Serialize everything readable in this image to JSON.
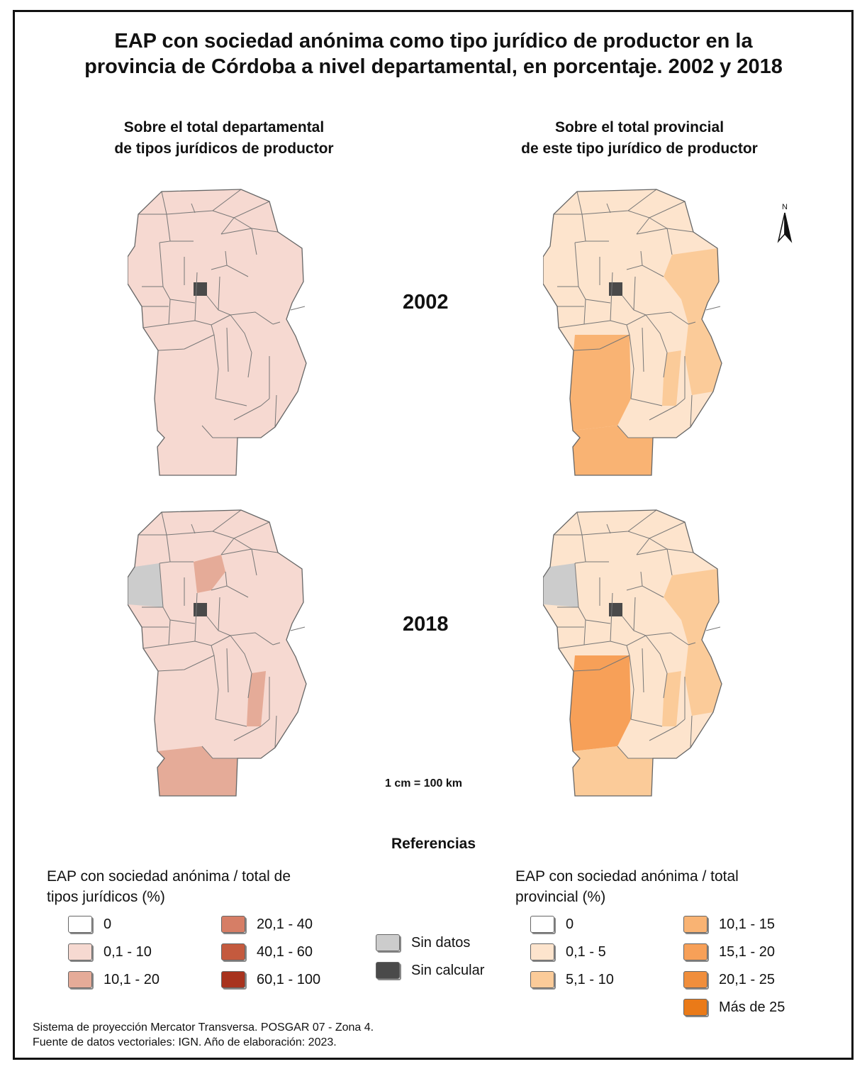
{
  "title": {
    "line1": "EAP con sociedad anónima como tipo jurídico de productor en la",
    "line2": "provincia de Córdoba a nivel departamental, en porcentaje. 2002 y 2018"
  },
  "columns": {
    "left": {
      "line1": "Sobre el total departamental",
      "line2": "de tipos jurídicos de productor"
    },
    "right": {
      "line1": "Sobre el total provincial",
      "line2": "de este tipo jurídico de productor"
    }
  },
  "years": [
    "2002",
    "2018"
  ],
  "scale": "1 cm = 100 km",
  "north": "N",
  "references_title": "Referencias",
  "legend_left": {
    "heading_line1": "EAP con sociedad anónima /  total de",
    "heading_line2": "tipos jurídicos (%)",
    "classes": [
      {
        "label": "0",
        "color": "#ffffff"
      },
      {
        "label": "0,1 - 10",
        "color": "#f6d9d1"
      },
      {
        "label": "10,1 - 20",
        "color": "#e5ab98"
      },
      {
        "label": "20,1 - 40",
        "color": "#d67e66"
      },
      {
        "label": "40,1 - 60",
        "color": "#c45a3e"
      },
      {
        "label": "60,1 - 100",
        "color": "#a8331e"
      }
    ]
  },
  "legend_mid": [
    {
      "label": "Sin datos",
      "color": "#cccccc"
    },
    {
      "label": "Sin calcular",
      "color": "#4a4a4a"
    }
  ],
  "legend_right": {
    "heading_line1": "EAP con sociedad anónima / total",
    "heading_line2": "provincial (%)",
    "classes": [
      {
        "label": "0",
        "color": "#ffffff"
      },
      {
        "label": "0,1 - 5",
        "color": "#fde4cd"
      },
      {
        "label": "5,1 - 10",
        "color": "#fbcb99"
      },
      {
        "label": "10,1 - 15",
        "color": "#f9b373"
      },
      {
        "label": "15,1 - 20",
        "color": "#f7a058"
      },
      {
        "label": "20,1 - 25",
        "color": "#f08e3c"
      },
      {
        "label": "Más de 25",
        "color": "#ea7a18"
      }
    ]
  },
  "footer": {
    "line1": "Sistema de proyección Mercator Transversa. POSGAR 07 - Zona 4.",
    "line2": "Fuente de datos vectoriales: IGN. Año de elaboración: 2023."
  },
  "maps": [
    {
      "name": "map-2002-departmental",
      "fills": {
        "base": "#f6d9d1",
        "west": "#f6d9d1",
        "capital": "#4a4a4a",
        "centerNorth": "#f6d9d1",
        "centralEast": "#f6d9d1",
        "southCenter": "#f6d9d1",
        "south": "#f6d9d1",
        "bottom": "#f6d9d1",
        "east": "#f6d9d1"
      }
    },
    {
      "name": "map-2002-provincial",
      "fills": {
        "base": "#fde4cd",
        "west": "#fde4cd",
        "capital": "#4a4a4a",
        "centerNorth": "#fde4cd",
        "centralEast": "#fbcb99",
        "southCenter": "#fbcb99",
        "south": "#f9b373",
        "bottom": "#f9b373",
        "east": "#fbcb99"
      }
    },
    {
      "name": "map-2018-departmental",
      "fills": {
        "base": "#f6d9d1",
        "west": "#cccccc",
        "capital": "#4a4a4a",
        "centerNorth": "#e5ab98",
        "centralEast": "#f6d9d1",
        "southCenter": "#e5ab98",
        "south": "#f6d9d1",
        "bottom": "#e5ab98",
        "east": "#f6d9d1"
      }
    },
    {
      "name": "map-2018-provincial",
      "fills": {
        "base": "#fde4cd",
        "west": "#cccccc",
        "capital": "#4a4a4a",
        "centerNorth": "#fde4cd",
        "centralEast": "#fbcb99",
        "southCenter": "#fbcb99",
        "south": "#f7a058",
        "bottom": "#fbcb99",
        "east": "#fbcb99"
      }
    }
  ]
}
